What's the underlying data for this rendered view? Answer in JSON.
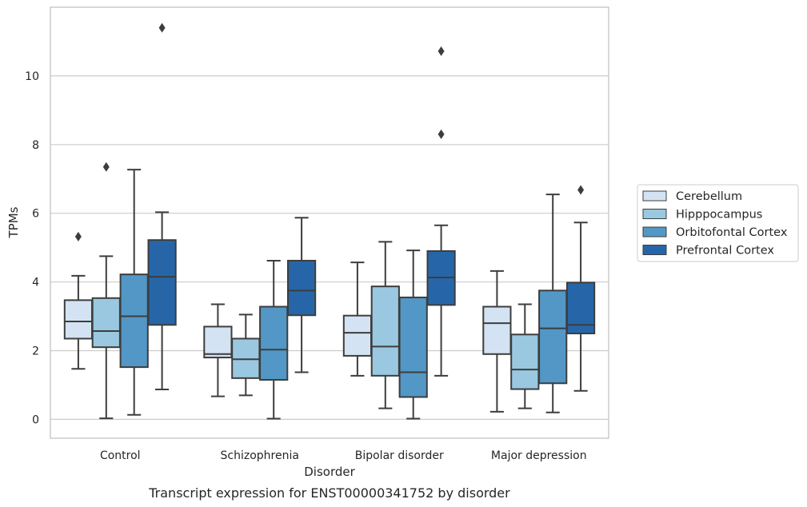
{
  "chart_data": {
    "type": "box",
    "xlabel": "Disorder",
    "ylabel": "TPMs",
    "caption": "Transcript expression for ENST00000341752 by disorder",
    "ylim": [
      -0.55,
      12.0
    ],
    "yticks": [
      0,
      2,
      4,
      6,
      8,
      10
    ],
    "grid": true,
    "legend_position": "right",
    "categories": [
      "Control",
      "Schizophrenia",
      "Bipolar disorder",
      "Major depression"
    ],
    "series": [
      {
        "name": "Cerebellum",
        "color": "#d3e3f3",
        "boxes": [
          {
            "whislo": 1.47,
            "q1": 2.35,
            "med": 2.85,
            "q3": 3.47,
            "whishi": 4.18,
            "fliers": [
              5.32
            ]
          },
          {
            "whislo": 0.67,
            "q1": 1.8,
            "med": 1.9,
            "q3": 2.7,
            "whishi": 3.35,
            "fliers": []
          },
          {
            "whislo": 1.27,
            "q1": 1.85,
            "med": 2.52,
            "q3": 3.02,
            "whishi": 4.57,
            "fliers": []
          },
          {
            "whislo": 0.22,
            "q1": 1.9,
            "med": 2.8,
            "q3": 3.28,
            "whishi": 4.32,
            "fliers": []
          }
        ]
      },
      {
        "name": "Hipppocampus",
        "color": "#9ac8e0",
        "boxes": [
          {
            "whislo": 0.03,
            "q1": 2.1,
            "med": 2.57,
            "q3": 3.53,
            "whishi": 4.75,
            "fliers": [
              7.35
            ]
          },
          {
            "whislo": 0.7,
            "q1": 1.2,
            "med": 1.75,
            "q3": 2.35,
            "whishi": 3.05,
            "fliers": []
          },
          {
            "whislo": 0.32,
            "q1": 1.27,
            "med": 2.12,
            "q3": 3.87,
            "whishi": 5.17,
            "fliers": []
          },
          {
            "whislo": 0.32,
            "q1": 0.88,
            "med": 1.45,
            "q3": 2.47,
            "whishi": 3.35,
            "fliers": []
          }
        ]
      },
      {
        "name": "Orbitofontal Cortex",
        "color": "#5297c6",
        "boxes": [
          {
            "whislo": 0.13,
            "q1": 1.52,
            "med": 3.0,
            "q3": 4.22,
            "whishi": 7.27,
            "fliers": []
          },
          {
            "whislo": 0.02,
            "q1": 1.15,
            "med": 2.03,
            "q3": 3.28,
            "whishi": 4.62,
            "fliers": []
          },
          {
            "whislo": 0.02,
            "q1": 0.65,
            "med": 1.37,
            "q3": 3.55,
            "whishi": 4.92,
            "fliers": []
          },
          {
            "whislo": 0.2,
            "q1": 1.05,
            "med": 2.65,
            "q3": 3.75,
            "whishi": 6.55,
            "fliers": []
          }
        ]
      },
      {
        "name": "Prefrontal Cortex",
        "color": "#2666a8",
        "boxes": [
          {
            "whislo": 0.87,
            "q1": 2.75,
            "med": 4.15,
            "q3": 5.22,
            "whishi": 6.03,
            "fliers": [
              11.4
            ]
          },
          {
            "whislo": 1.37,
            "q1": 3.03,
            "med": 3.75,
            "q3": 4.62,
            "whishi": 5.87,
            "fliers": []
          },
          {
            "whislo": 1.27,
            "q1": 3.33,
            "med": 4.13,
            "q3": 4.9,
            "whishi": 5.65,
            "fliers": [
              8.3,
              10.72
            ]
          },
          {
            "whislo": 0.83,
            "q1": 2.5,
            "med": 2.75,
            "q3": 3.98,
            "whishi": 5.73,
            "fliers": [
              6.68
            ]
          }
        ]
      }
    ]
  }
}
